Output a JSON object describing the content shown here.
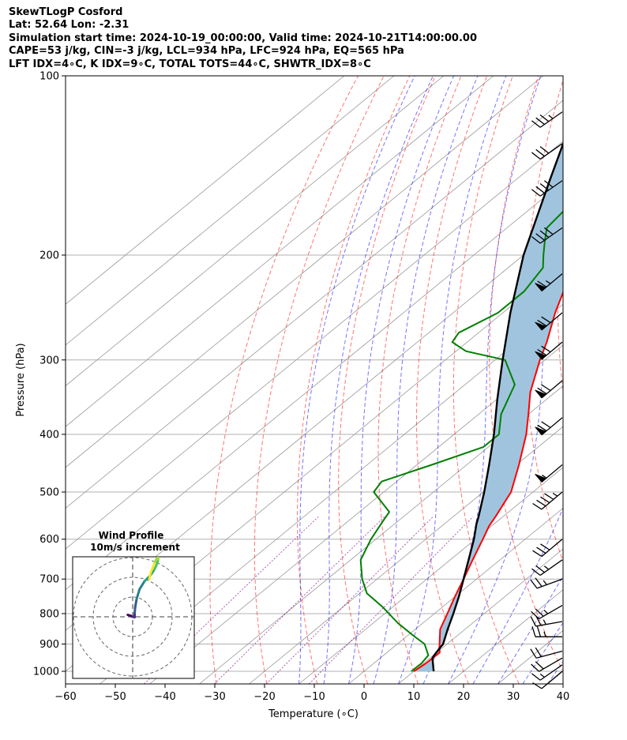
{
  "header": {
    "line1": "SkewTLogP Cosford",
    "line2": "Lat: 52.64   Lon: -2.31",
    "line3": "Simulation start time: 2024-10-19_00:00:00, Valid time: 2024-10-21T14:00:00.00",
    "line4": "CAPE=53 j/kg, CIN=-3 j/kg, LCL=934 hPa, LFC=924 hPa, EQ=565 hPa",
    "line5": "LFT IDX=4∘C, K IDX=9∘C, TOTAL TOTS=44∘C, SHWTR_IDX=8∘C"
  },
  "colors": {
    "temperature": "#ff0000",
    "dewpoint": "#008000",
    "parcel": "#000000",
    "cape_fill": "#a0c4de",
    "dry_adiabat": "#ff0000",
    "moist_adiabat": "#0000ff",
    "mixing_ratio": "#800080",
    "isotherm": "#999999"
  },
  "chart_data": {
    "type": "skew-t log-p",
    "xlabel": "Temperature (∘C)",
    "ylabel": "Pressure (hPa)",
    "xlim": [
      -60,
      40
    ],
    "ylim": [
      1050,
      100
    ],
    "x_ticks": [
      "−60",
      "−50",
      "−40",
      "−30",
      "−20",
      "−10",
      "0",
      "10",
      "20",
      "30",
      "40"
    ],
    "x_tick_values": [
      -60,
      -50,
      -40,
      -30,
      -20,
      -10,
      0,
      10,
      20,
      30,
      40
    ],
    "y_tick_values": [
      1000,
      900,
      800,
      700,
      600,
      500,
      400,
      300,
      200,
      100
    ],
    "y_ticks": [
      "1000",
      "900",
      "800",
      "700",
      "600",
      "500",
      "400",
      "300",
      "200",
      "100"
    ],
    "grid": true,
    "temperature_profile": [
      [
        1000,
        10
      ],
      [
        970,
        10.5
      ],
      [
        930,
        10.6
      ],
      [
        900,
        8.5
      ],
      [
        850,
        5
      ],
      [
        800,
        2.6
      ],
      [
        750,
        0
      ],
      [
        700,
        -2.6
      ],
      [
        650,
        -5.5
      ],
      [
        600,
        -8.5
      ],
      [
        570,
        -10.5
      ],
      [
        550,
        -11.5
      ],
      [
        500,
        -14.4
      ],
      [
        450,
        -19.5
      ],
      [
        400,
        -25.5
      ],
      [
        370,
        -30
      ],
      [
        340,
        -35
      ],
      [
        300,
        -41
      ],
      [
        280,
        -44
      ],
      [
        250,
        -49.5
      ],
      [
        220,
        -55
      ],
      [
        200,
        -59
      ],
      [
        185,
        -62
      ],
      [
        170,
        -64
      ],
      [
        150,
        -67
      ],
      [
        120,
        -74
      ],
      [
        100,
        -80
      ]
    ],
    "dewpoint_profile": [
      [
        1000,
        9.5
      ],
      [
        970,
        9.6
      ],
      [
        940,
        9
      ],
      [
        900,
        5.5
      ],
      [
        870,
        1
      ],
      [
        830,
        -5
      ],
      [
        780,
        -12
      ],
      [
        740,
        -18.5
      ],
      [
        700,
        -23
      ],
      [
        650,
        -28
      ],
      [
        600,
        -31
      ],
      [
        560,
        -33
      ],
      [
        540,
        -34
      ],
      [
        500,
        -42
      ],
      [
        480,
        -43
      ],
      [
        450,
        -37
      ],
      [
        420,
        -31
      ],
      [
        400,
        -31
      ],
      [
        370,
        -35.5
      ],
      [
        330,
        -40
      ],
      [
        300,
        -48
      ],
      [
        290,
        -58
      ],
      [
        280,
        -63
      ],
      [
        270,
        -64
      ],
      [
        250,
        -61
      ],
      [
        230,
        -61
      ],
      [
        210,
        -63
      ],
      [
        200,
        -66
      ],
      [
        190,
        -69
      ],
      [
        180,
        -72
      ],
      [
        165,
        -73
      ],
      [
        150,
        -74
      ],
      [
        130,
        -80
      ],
      [
        115,
        -87
      ],
      [
        100,
        -94
      ]
    ],
    "parcel_profile": [
      [
        1000,
        14
      ],
      [
        950,
        10.5
      ],
      [
        934,
        10
      ],
      [
        900,
        9.2
      ],
      [
        850,
        6.5
      ],
      [
        800,
        3.8
      ],
      [
        750,
        0.8
      ],
      [
        700,
        -2.6
      ],
      [
        650,
        -6.3
      ],
      [
        600,
        -10.3
      ],
      [
        565,
        -13.6
      ],
      [
        550,
        -14.9
      ],
      [
        500,
        -19.8
      ],
      [
        450,
        -25.5
      ],
      [
        400,
        -32
      ],
      [
        350,
        -39.8
      ],
      [
        300,
        -48.5
      ],
      [
        250,
        -58.5
      ],
      [
        200,
        -70
      ],
      [
        150,
        -83
      ],
      [
        100,
        -101
      ]
    ],
    "cape_region": {
      "lfc_hpa": 924,
      "eq_hpa": 565
    },
    "wind_barbs": [
      {
        "p": 1000,
        "speed_kt": 10,
        "dir_deg": 230
      },
      {
        "p": 975,
        "speed_kt": 15,
        "dir_deg": 235
      },
      {
        "p": 950,
        "speed_kt": 20,
        "dir_deg": 240
      },
      {
        "p": 925,
        "speed_kt": 20,
        "dir_deg": 255
      },
      {
        "p": 875,
        "speed_kt": 25,
        "dir_deg": 270
      },
      {
        "p": 825,
        "speed_kt": 25,
        "dir_deg": 260
      },
      {
        "p": 775,
        "speed_kt": 25,
        "dir_deg": 240
      },
      {
        "p": 700,
        "speed_kt": 25,
        "dir_deg": 250
      },
      {
        "p": 650,
        "speed_kt": 25,
        "dir_deg": 235
      },
      {
        "p": 600,
        "speed_kt": 30,
        "dir_deg": 230
      },
      {
        "p": 500,
        "speed_kt": 45,
        "dir_deg": 230
      },
      {
        "p": 450,
        "speed_kt": 55,
        "dir_deg": 230
      },
      {
        "p": 375,
        "speed_kt": 70,
        "dir_deg": 230
      },
      {
        "p": 325,
        "speed_kt": 70,
        "dir_deg": 230
      },
      {
        "p": 280,
        "speed_kt": 70,
        "dir_deg": 230
      },
      {
        "p": 250,
        "speed_kt": 70,
        "dir_deg": 230
      },
      {
        "p": 215,
        "speed_kt": 65,
        "dir_deg": 230
      },
      {
        "p": 180,
        "speed_kt": 40,
        "dir_deg": 235
      },
      {
        "p": 150,
        "speed_kt": 40,
        "dir_deg": 235
      },
      {
        "p": 130,
        "speed_kt": 30,
        "dir_deg": 235
      },
      {
        "p": 115,
        "speed_kt": 35,
        "dir_deg": 235
      }
    ],
    "hodograph": {
      "title": "Wind Profile",
      "subtitle": "10m/s increment",
      "ring_spacing_ms": 10,
      "points": [
        [
          -2.5,
          1
        ],
        [
          -1,
          0.5
        ],
        [
          0,
          0
        ],
        [
          1,
          -0.2
        ],
        [
          1,
          2
        ],
        [
          1.3,
          5
        ],
        [
          2,
          9
        ],
        [
          3.5,
          14
        ],
        [
          6,
          18
        ],
        [
          9,
          21
        ],
        [
          11,
          24
        ],
        [
          12,
          26
        ],
        [
          13,
          29
        ],
        [
          12.8,
          31
        ],
        [
          11,
          27
        ],
        [
          9,
          22
        ],
        [
          8.5,
          19
        ]
      ]
    }
  }
}
